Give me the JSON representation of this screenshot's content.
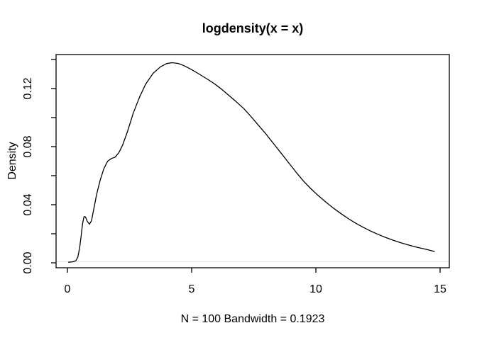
{
  "chart_data": {
    "type": "line",
    "title": "logdensity(x = x)",
    "xlabel": "N = 100   Bandwidth = 0.1923",
    "ylabel": "Density",
    "x_ticks": {
      "values": [
        0,
        5,
        10,
        15
      ],
      "labels": [
        "0",
        "5",
        "10",
        "15"
      ]
    },
    "y_ticks": {
      "values": [
        0.0,
        0.02,
        0.04,
        0.06,
        0.08,
        0.1,
        0.12,
        0.14
      ],
      "labels": [
        "0.00",
        "",
        "0.04",
        "",
        "0.08",
        "",
        "0.12",
        ""
      ]
    },
    "xlim": [
      -0.4571,
      15.3714
    ],
    "ylim": [
      -0.0034,
      0.1434
    ],
    "grid": false,
    "legend_position": null,
    "reference_line": {
      "y": 0,
      "color": "#e7e7e7"
    },
    "style": {
      "curve_color": "#000000",
      "axis_color": "#000000",
      "text_color": "#000000",
      "background": "#ffffff"
    },
    "series": [
      {
        "name": "density",
        "x": [
          0.05,
          0.22,
          0.34,
          0.42,
          0.49,
          0.55,
          0.61,
          0.67,
          0.73,
          0.8,
          0.89,
          0.97,
          1.06,
          1.18,
          1.32,
          1.47,
          1.62,
          1.77,
          1.92,
          2.07,
          2.22,
          2.42,
          2.65,
          2.9,
          3.15,
          3.45,
          3.75,
          4.0,
          4.2,
          4.45,
          4.7,
          5.0,
          5.3,
          5.6,
          5.9,
          6.2,
          6.5,
          6.8,
          7.1,
          7.4,
          7.7,
          8.0,
          8.3,
          8.6,
          8.9,
          9.2,
          9.5,
          9.8,
          10.1,
          10.4,
          10.7,
          11.0,
          11.3,
          11.6,
          11.9,
          12.2,
          12.5,
          12.8,
          13.1,
          13.4,
          13.7,
          14.0,
          14.3,
          14.55,
          14.77
        ],
        "y": [
          0.0004,
          0.0007,
          0.0015,
          0.004,
          0.01,
          0.018,
          0.027,
          0.0318,
          0.0315,
          0.0285,
          0.0266,
          0.029,
          0.037,
          0.0475,
          0.057,
          0.065,
          0.07,
          0.0718,
          0.0728,
          0.0758,
          0.081,
          0.0905,
          0.103,
          0.114,
          0.123,
          0.1305,
          0.135,
          0.1372,
          0.1378,
          0.1373,
          0.1357,
          0.133,
          0.13,
          0.1268,
          0.1235,
          0.1196,
          0.1152,
          0.1108,
          0.1062,
          0.1005,
          0.0945,
          0.0885,
          0.082,
          0.0755,
          0.069,
          0.0625,
          0.0563,
          0.051,
          0.0462,
          0.0418,
          0.0377,
          0.034,
          0.0305,
          0.0273,
          0.0245,
          0.0219,
          0.0196,
          0.0175,
          0.0156,
          0.0139,
          0.0124,
          0.011,
          0.0098,
          0.0088,
          0.0078
        ]
      }
    ]
  }
}
